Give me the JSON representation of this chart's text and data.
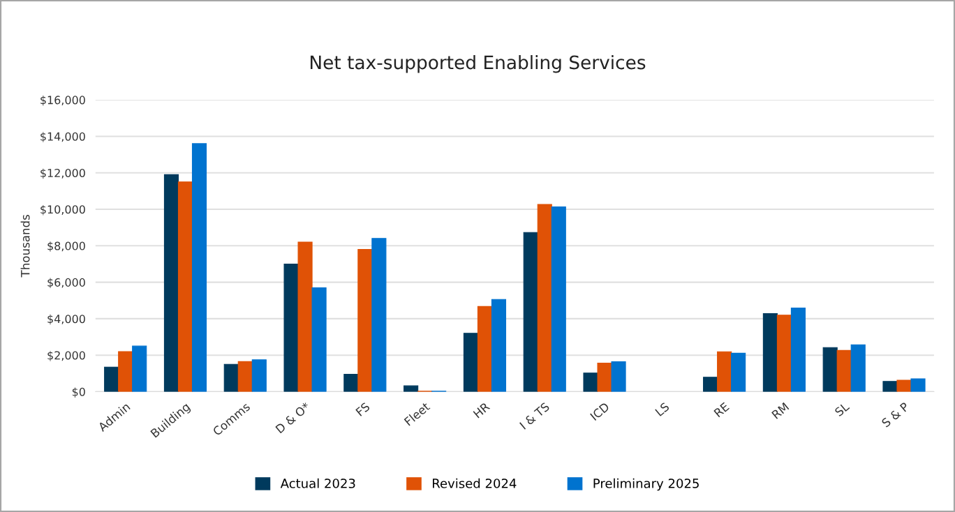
{
  "chart_data": {
    "type": "bar",
    "title": "Net tax-supported Enabling Services",
    "ylabel": "Thousands",
    "categories": [
      "Admin",
      "Building",
      "Comms",
      "D & O*",
      "FS",
      "Fleet",
      "HR",
      "I & TS",
      "ICD",
      "LS",
      "RE",
      "RM",
      "SL",
      "S & P"
    ],
    "series": [
      {
        "name": "Actual 2023",
        "color": "#003a5d",
        "values": [
          1350,
          11900,
          1500,
          7000,
          950,
          320,
          3200,
          8730,
          1020,
          null,
          790,
          4280,
          2420,
          560
        ]
      },
      {
        "name": "Revised 2024",
        "color": "#e05206",
        "values": [
          2200,
          11500,
          1650,
          8200,
          7800,
          30,
          4670,
          10270,
          1570,
          null,
          2190,
          4200,
          2260,
          630
        ]
      },
      {
        "name": "Preliminary 2025",
        "color": "#0073cf",
        "values": [
          2500,
          13600,
          1750,
          5700,
          8400,
          30,
          5060,
          10130,
          1640,
          null,
          2110,
          4590,
          2570,
          710
        ]
      }
    ],
    "ylim": [
      0,
      16000
    ],
    "yticks": [
      {
        "value": 0,
        "label": "$0"
      },
      {
        "value": 2000,
        "label": "$2,000"
      },
      {
        "value": 4000,
        "label": "$4,000"
      },
      {
        "value": 6000,
        "label": "$6,000"
      },
      {
        "value": 8000,
        "label": "$8,000"
      },
      {
        "value": 10000,
        "label": "$10,000"
      },
      {
        "value": 12000,
        "label": "$12,000"
      },
      {
        "value": 14000,
        "label": "$14,000"
      },
      {
        "value": 16000,
        "label": "$16,000"
      }
    ],
    "grid": "y",
    "legend": "bottom"
  }
}
